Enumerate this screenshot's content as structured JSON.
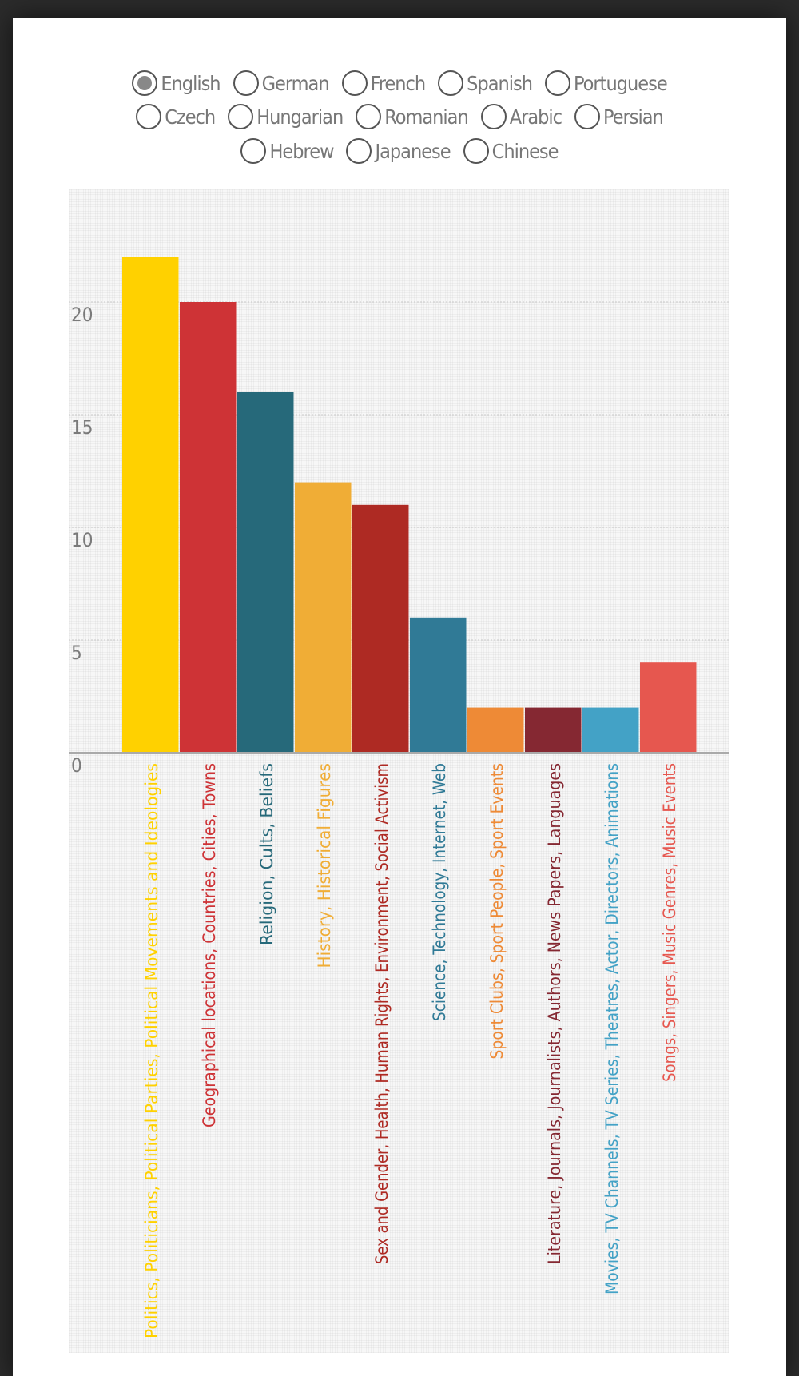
{
  "languages": [
    {
      "label": "English",
      "checked": true
    },
    {
      "label": "German",
      "checked": false
    },
    {
      "label": "French",
      "checked": false
    },
    {
      "label": "Spanish",
      "checked": false
    },
    {
      "label": "Portuguese",
      "checked": false
    },
    {
      "label": "Czech",
      "checked": false
    },
    {
      "label": "Hungarian",
      "checked": false
    },
    {
      "label": "Romanian",
      "checked": false
    },
    {
      "label": "Arabic",
      "checked": false
    },
    {
      "label": "Persian",
      "checked": false
    },
    {
      "label": "Hebrew",
      "checked": false
    },
    {
      "label": "Japanese",
      "checked": false
    },
    {
      "label": "Chinese",
      "checked": false
    }
  ],
  "chart_data": {
    "type": "bar",
    "title": "",
    "xlabel": "",
    "ylabel": "",
    "ylim": [
      0,
      25
    ],
    "yticks": [
      0,
      5,
      10,
      15,
      20
    ],
    "grid": true,
    "categories": [
      "Politics, Politicians, Political Parties, Political Movements and Ideologies",
      "Geographical locations, Countries, Cities, Towns",
      "Religion, Cults, Beliefs",
      "History, Historical Figures",
      "Sex and Gender, Health, Human Rights, Environment, Social Activism",
      "Science, Technology, Internet, Web",
      "Sport Clubs, Sport People, Sport Events",
      "Literature, Journals, Journalists, Authors, News Papers, Languages",
      "Movies, TV Channels, TV Series, Theatres, Actor, Directors, Animations",
      "Songs, Singers, Music Genres, Music Events"
    ],
    "values": [
      22,
      20,
      16,
      12,
      11,
      6,
      2,
      2,
      2,
      4
    ],
    "colors": [
      "#FFD100",
      "#CE3336",
      "#26697A",
      "#F0AD36",
      "#AE2A23",
      "#307A96",
      "#EE8A36",
      "#852832",
      "#43A2C6",
      "#E6574F"
    ]
  }
}
